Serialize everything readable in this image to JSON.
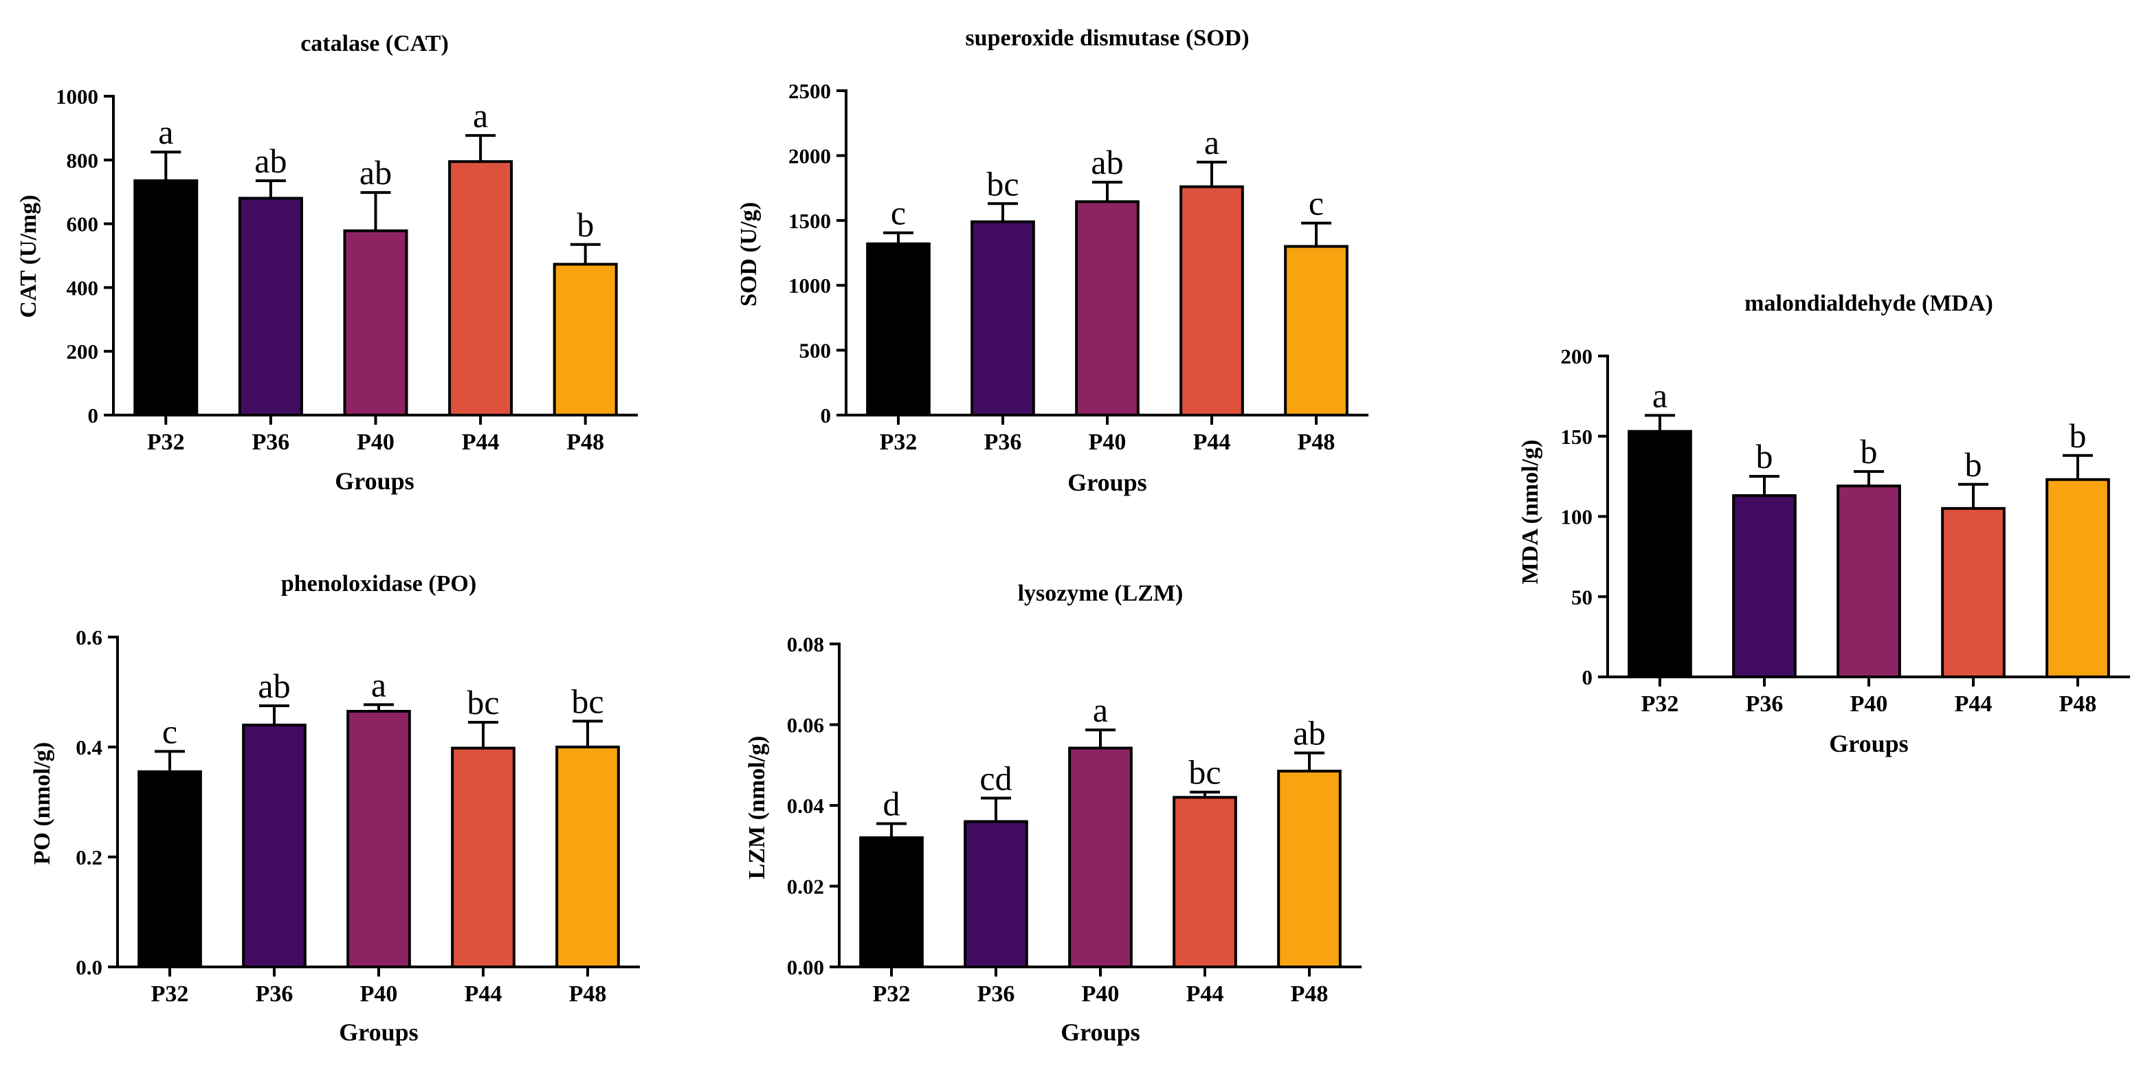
{
  "colors": {
    "P32": "#000000",
    "P36": "#420c60",
    "P40": "#8e2363",
    "P44": "#de513c",
    "P48": "#f8a30f"
  },
  "chart_data": [
    {
      "id": "cat",
      "type": "bar",
      "title": "catalase (CAT)",
      "xlabel": "Groups",
      "ylabel": "CAT (U/mg)",
      "categories": [
        "P32",
        "P36",
        "P40",
        "P44",
        "P48"
      ],
      "values": [
        735,
        680,
        578,
        795,
        473
      ],
      "errors": [
        90,
        55,
        120,
        82,
        62
      ],
      "letters": [
        "a",
        "ab",
        "ab",
        "a",
        "b"
      ],
      "ylim": [
        0,
        1000
      ],
      "yticks": [
        "0",
        "200",
        "400",
        "600",
        "800",
        "1000"
      ],
      "grid": false
    },
    {
      "id": "sod",
      "type": "bar",
      "title": "superoxide dismutase (SOD)",
      "xlabel": "Groups",
      "ylabel": "SOD (U/g)",
      "categories": [
        "P32",
        "P36",
        "P40",
        "P44",
        "P48"
      ],
      "values": [
        1320,
        1490,
        1645,
        1760,
        1300
      ],
      "errors": [
        85,
        140,
        150,
        190,
        180
      ],
      "letters": [
        "c",
        "bc",
        "ab",
        "a",
        "c"
      ],
      "ylim": [
        0,
        2500
      ],
      "yticks": [
        "0",
        "500",
        "1000",
        "1500",
        "2000",
        "2500"
      ],
      "grid": false
    },
    {
      "id": "mda",
      "type": "bar",
      "title": "malondialdehyde (MDA)",
      "xlabel": "Groups",
      "ylabel": "MDA (nmol/g)",
      "categories": [
        "P32",
        "P36",
        "P40",
        "P44",
        "P48"
      ],
      "values": [
        153,
        113,
        119,
        105,
        123
      ],
      "errors": [
        10,
        12,
        9,
        15,
        15
      ],
      "letters": [
        "a",
        "b",
        "b",
        "b",
        "b"
      ],
      "ylim": [
        0,
        200
      ],
      "yticks": [
        "0",
        "50",
        "100",
        "150",
        "200"
      ],
      "grid": false
    },
    {
      "id": "po",
      "type": "bar",
      "title": "phenoloxidase (PO)",
      "xlabel": "Groups",
      "ylabel": "PO (nmol/g)",
      "categories": [
        "P32",
        "P36",
        "P40",
        "P44",
        "P48"
      ],
      "values": [
        0.355,
        0.44,
        0.465,
        0.398,
        0.4
      ],
      "errors": [
        0.037,
        0.035,
        0.012,
        0.047,
        0.047
      ],
      "letters": [
        "c",
        "ab",
        "a",
        "bc",
        "bc"
      ],
      "ylim": [
        0,
        0.6
      ],
      "yticks": [
        "0.0",
        "0.2",
        "0.4",
        "0.6"
      ],
      "grid": false
    },
    {
      "id": "lzm",
      "type": "bar",
      "title": "lysozyme (LZM)",
      "xlabel": "Groups",
      "ylabel": "LZM (nmol/g)",
      "categories": [
        "P32",
        "P36",
        "P40",
        "P44",
        "P48"
      ],
      "values": [
        0.032,
        0.036,
        0.0542,
        0.042,
        0.0485
      ],
      "errors": [
        0.0035,
        0.0058,
        0.0045,
        0.0013,
        0.0045
      ],
      "letters": [
        "d",
        "cd",
        "a",
        "bc",
        "ab"
      ],
      "ylim": [
        0,
        0.08
      ],
      "yticks": [
        "0.00",
        "0.02",
        "0.04",
        "0.06",
        "0.08"
      ],
      "grid": false
    }
  ]
}
